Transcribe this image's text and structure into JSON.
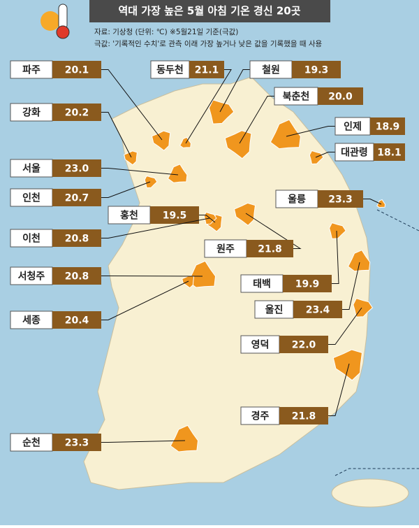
{
  "header": {
    "title": "역대 가장 높은 5월 아침 기온 경신 20곳",
    "notes": [
      "자료: 기상청  (단위: ℃)  ※5월21일 기준(극값)",
      "극값: '기록적인 수치'로 관측 이래 가장 높거나 낮은 값을 기록했을 때 사용"
    ]
  },
  "stations": [
    {
      "name": "파주",
      "value": "20.1"
    },
    {
      "name": "동두천",
      "value": "21.1"
    },
    {
      "name": "철원",
      "value": "19.3"
    },
    {
      "name": "북춘천",
      "value": "20.0"
    },
    {
      "name": "인제",
      "value": "18.9"
    },
    {
      "name": "대관령",
      "value": "18.1"
    },
    {
      "name": "강화",
      "value": "20.2"
    },
    {
      "name": "서울",
      "value": "23.0"
    },
    {
      "name": "인천",
      "value": "20.7"
    },
    {
      "name": "홍천",
      "value": "19.5"
    },
    {
      "name": "울릉",
      "value": "23.3"
    },
    {
      "name": "이천",
      "value": "20.8"
    },
    {
      "name": "원주",
      "value": "21.8"
    },
    {
      "name": "서청주",
      "value": "20.8"
    },
    {
      "name": "태백",
      "value": "19.9"
    },
    {
      "name": "세종",
      "value": "20.4"
    },
    {
      "name": "울진",
      "value": "23.4"
    },
    {
      "name": "영덕",
      "value": "22.0"
    },
    {
      "name": "경주",
      "value": "21.8"
    },
    {
      "name": "순천",
      "value": "23.3"
    }
  ]
}
